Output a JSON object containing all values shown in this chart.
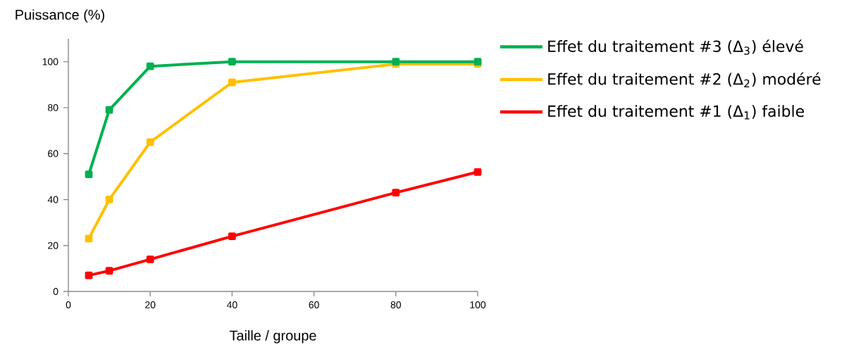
{
  "chart_data": {
    "type": "line",
    "xlabel": "Taille / groupe",
    "ylabel": "Puissance (%)",
    "x": [
      5,
      10,
      20,
      40,
      80,
      100
    ],
    "series": [
      {
        "name": "Effet du traitement #3 (Δ$_{3}$) élevé",
        "color": "#00b050",
        "values": [
          51,
          79,
          98,
          100,
          100,
          100
        ]
      },
      {
        "name": "Effet du traitement #2 (Δ$_{2}$) modéré",
        "color": "#ffc000",
        "values": [
          23,
          40,
          65,
          91,
          99,
          99
        ]
      },
      {
        "name": "Effet du traitement #1 (Δ$_{1}$) faible",
        "color": "#ff0000",
        "values": [
          7,
          9,
          14,
          24,
          43,
          52
        ]
      }
    ],
    "xlim": [
      0,
      100
    ],
    "xticks": [
      0,
      20,
      40,
      60,
      80,
      100
    ],
    "ylim": [
      0,
      110
    ],
    "yticks": [
      0,
      20,
      40,
      60,
      80,
      100
    ],
    "grid": false,
    "legend": "right",
    "marker": "square",
    "line_style": "solid"
  }
}
